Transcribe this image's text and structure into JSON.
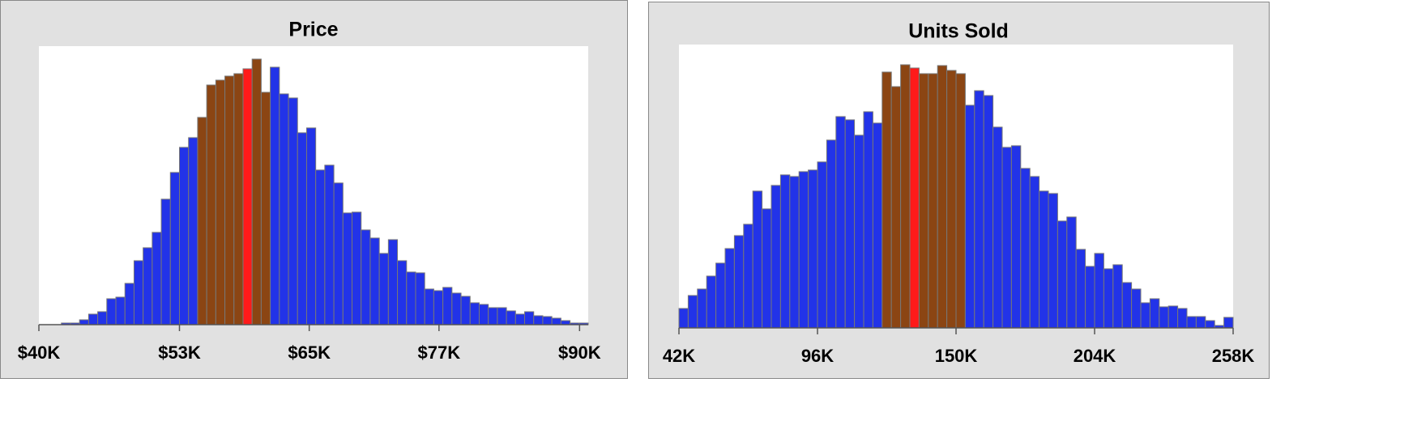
{
  "chart_data": [
    {
      "type": "histogram",
      "title": "Price",
      "bins": [
        42080,
        42920,
        43760,
        44600,
        45440,
        46280,
        47120,
        47960,
        48800,
        49640,
        50480,
        51320,
        52160,
        53000,
        53840,
        54680,
        55520,
        56360,
        57200,
        58040,
        58880,
        59720,
        60560,
        61400,
        62240,
        63080,
        63920,
        64760,
        65600,
        66440,
        67280,
        68120,
        68960,
        69800,
        70640,
        71480,
        72320,
        73160,
        74000,
        74840,
        75680,
        76520,
        77360,
        78200,
        79040,
        79880,
        80720,
        81560,
        82400,
        83240,
        84080,
        84920,
        85760,
        86600,
        87440,
        88280,
        89120,
        89960,
        90800
      ],
      "values": [
        2,
        2,
        6,
        13,
        16,
        32,
        34,
        51,
        79,
        95,
        114,
        155,
        188,
        219,
        231,
        256,
        296,
        302,
        307,
        310,
        316,
        328,
        287,
        318,
        285,
        280,
        237,
        243,
        191,
        197,
        175,
        138,
        139,
        117,
        107,
        88,
        105,
        79,
        65,
        64,
        44,
        42,
        46,
        39,
        35,
        27,
        25,
        21,
        21,
        17,
        13,
        16,
        11,
        10,
        8,
        5,
        2,
        2
      ],
      "colors": [
        "#2233e8",
        "#2233e8",
        "#2233e8",
        "#2233e8",
        "#2233e8",
        "#2233e8",
        "#2233e8",
        "#2233e8",
        "#2233e8",
        "#2233e8",
        "#2233e8",
        "#2233e8",
        "#2233e8",
        "#2233e8",
        "#2233e8",
        "#8b4513",
        "#8b4513",
        "#8b4513",
        "#8b4513",
        "#8b4513",
        "#ff1a1a",
        "#8b4513",
        "#8b4513",
        "#2233e8",
        "#2233e8",
        "#2233e8",
        "#2233e8",
        "#2233e8",
        "#2233e8",
        "#2233e8",
        "#2233e8",
        "#2233e8",
        "#2233e8",
        "#2233e8",
        "#2233e8",
        "#2233e8",
        "#2233e8",
        "#2233e8",
        "#2233e8",
        "#2233e8",
        "#2233e8",
        "#2233e8",
        "#2233e8",
        "#2233e8",
        "#2233e8",
        "#2233e8",
        "#2233e8",
        "#2233e8",
        "#2233e8",
        "#2233e8",
        "#2233e8",
        "#2233e8",
        "#2233e8",
        "#2233e8",
        "#2233e8",
        "#2233e8",
        "#2233e8",
        "#2233e8"
      ],
      "xlim": [
        40000,
        90800
      ],
      "ylim": [
        0,
        344
      ],
      "xticks": [
        {
          "value": 40000,
          "label": "$40K"
        },
        {
          "value": 53000,
          "label": "$53K"
        },
        {
          "value": 65000,
          "label": "$65K"
        },
        {
          "value": 77000,
          "label": "$77K"
        },
        {
          "value": 90000,
          "label": "$90K"
        }
      ]
    },
    {
      "type": "histogram",
      "title": "Units Sold",
      "bins": [
        42000,
        45600,
        49200,
        52800,
        56400,
        60000,
        63600,
        67200,
        70800,
        74400,
        78000,
        81600,
        85200,
        88800,
        92400,
        96000,
        99600,
        103200,
        106800,
        110400,
        114000,
        117600,
        121200,
        124800,
        128400,
        132000,
        135600,
        139200,
        142800,
        146400,
        150000,
        153600,
        157200,
        160800,
        164400,
        168000,
        171600,
        175200,
        178800,
        182400,
        186000,
        189600,
        193200,
        196800,
        200400,
        204000,
        207600,
        211200,
        214800,
        218400,
        222000,
        225600,
        229200,
        232800,
        236400,
        240000,
        243600,
        247200,
        250800,
        254400,
        258000
      ],
      "values": [
        24,
        40,
        48,
        64,
        80,
        98,
        114,
        128,
        169,
        147,
        176,
        189,
        187,
        193,
        195,
        205,
        232,
        261,
        257,
        238,
        267,
        253,
        316,
        298,
        325,
        321,
        314,
        314,
        324,
        318,
        314,
        275,
        293,
        287,
        248,
        223,
        225,
        197,
        187,
        169,
        166,
        132,
        137,
        97,
        76,
        92,
        73,
        78,
        56,
        48,
        31,
        36,
        26,
        27,
        24,
        14,
        14,
        9,
        3,
        13
      ],
      "colors": [
        "#2233e8",
        "#2233e8",
        "#2233e8",
        "#2233e8",
        "#2233e8",
        "#2233e8",
        "#2233e8",
        "#2233e8",
        "#2233e8",
        "#2233e8",
        "#2233e8",
        "#2233e8",
        "#2233e8",
        "#2233e8",
        "#2233e8",
        "#2233e8",
        "#2233e8",
        "#2233e8",
        "#2233e8",
        "#2233e8",
        "#2233e8",
        "#2233e8",
        "#8b4513",
        "#8b4513",
        "#8b4513",
        "#ff1a1a",
        "#8b4513",
        "#8b4513",
        "#8b4513",
        "#8b4513",
        "#8b4513",
        "#2233e8",
        "#2233e8",
        "#2233e8",
        "#2233e8",
        "#2233e8",
        "#2233e8",
        "#2233e8",
        "#2233e8",
        "#2233e8",
        "#2233e8",
        "#2233e8",
        "#2233e8",
        "#2233e8",
        "#2233e8",
        "#2233e8",
        "#2233e8",
        "#2233e8",
        "#2233e8",
        "#2233e8",
        "#2233e8",
        "#2233e8",
        "#2233e8",
        "#2233e8",
        "#2233e8",
        "#2233e8",
        "#2233e8",
        "#2233e8",
        "#2233e8",
        "#2233e8"
      ],
      "xlim": [
        42000,
        258000
      ],
      "ylim": [
        0,
        350
      ],
      "xticks": [
        {
          "value": 42000,
          "label": "42K"
        },
        {
          "value": 96000,
          "label": "96K"
        },
        {
          "value": 150000,
          "label": "150K"
        },
        {
          "value": 204000,
          "label": "204K"
        },
        {
          "value": 258000,
          "label": "258K"
        }
      ]
    }
  ]
}
